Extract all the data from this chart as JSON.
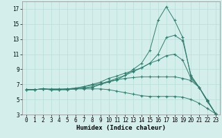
{
  "xlabel": "Humidex (Indice chaleur)",
  "background_color": "#d4efeb",
  "grid_color": "#b8ddd8",
  "line_color": "#2e7d6e",
  "x_values": [
    0,
    1,
    2,
    3,
    4,
    5,
    6,
    7,
    8,
    9,
    10,
    11,
    12,
    13,
    14,
    15,
    16,
    17,
    18,
    19,
    20,
    21,
    22,
    23
  ],
  "lines": [
    [
      6.3,
      6.3,
      6.4,
      6.3,
      6.3,
      6.3,
      6.4,
      6.5,
      6.6,
      7.0,
      7.3,
      7.6,
      8.2,
      9.0,
      9.8,
      11.5,
      15.5,
      17.3,
      15.5,
      13.2,
      8.0,
      6.6,
      4.7,
      3.1
    ],
    [
      6.3,
      6.3,
      6.4,
      6.3,
      6.3,
      6.3,
      6.4,
      6.5,
      6.7,
      7.0,
      7.4,
      7.8,
      8.2,
      8.7,
      9.2,
      9.8,
      11.0,
      13.2,
      13.5,
      12.8,
      8.2,
      6.6,
      4.9,
      3.1
    ],
    [
      6.3,
      6.3,
      6.4,
      6.3,
      6.3,
      6.4,
      6.5,
      6.7,
      7.0,
      7.3,
      7.8,
      8.1,
      8.5,
      8.8,
      9.2,
      9.8,
      10.2,
      10.8,
      11.0,
      10.2,
      7.8,
      6.6,
      4.8,
      3.1
    ],
    [
      6.3,
      6.3,
      6.4,
      6.3,
      6.3,
      6.4,
      6.5,
      6.7,
      6.9,
      7.1,
      7.4,
      7.6,
      7.8,
      7.9,
      8.0,
      8.0,
      8.0,
      8.0,
      8.0,
      7.8,
      7.5,
      6.6,
      4.8,
      3.1
    ],
    [
      6.3,
      6.3,
      6.4,
      6.4,
      6.4,
      6.4,
      6.4,
      6.4,
      6.4,
      6.4,
      6.3,
      6.1,
      5.9,
      5.7,
      5.5,
      5.4,
      5.4,
      5.4,
      5.4,
      5.3,
      5.0,
      4.5,
      3.8,
      3.1
    ]
  ],
  "ylim": [
    3,
    18
  ],
  "xlim": [
    -0.5,
    23.5
  ],
  "yticks": [
    3,
    5,
    7,
    9,
    11,
    13,
    15,
    17
  ],
  "xticks": [
    0,
    1,
    2,
    3,
    4,
    5,
    6,
    7,
    8,
    9,
    10,
    11,
    12,
    13,
    14,
    15,
    16,
    17,
    18,
    19,
    20,
    21,
    22,
    23
  ],
  "tick_fontsize": 5.5,
  "label_fontsize": 6.5
}
